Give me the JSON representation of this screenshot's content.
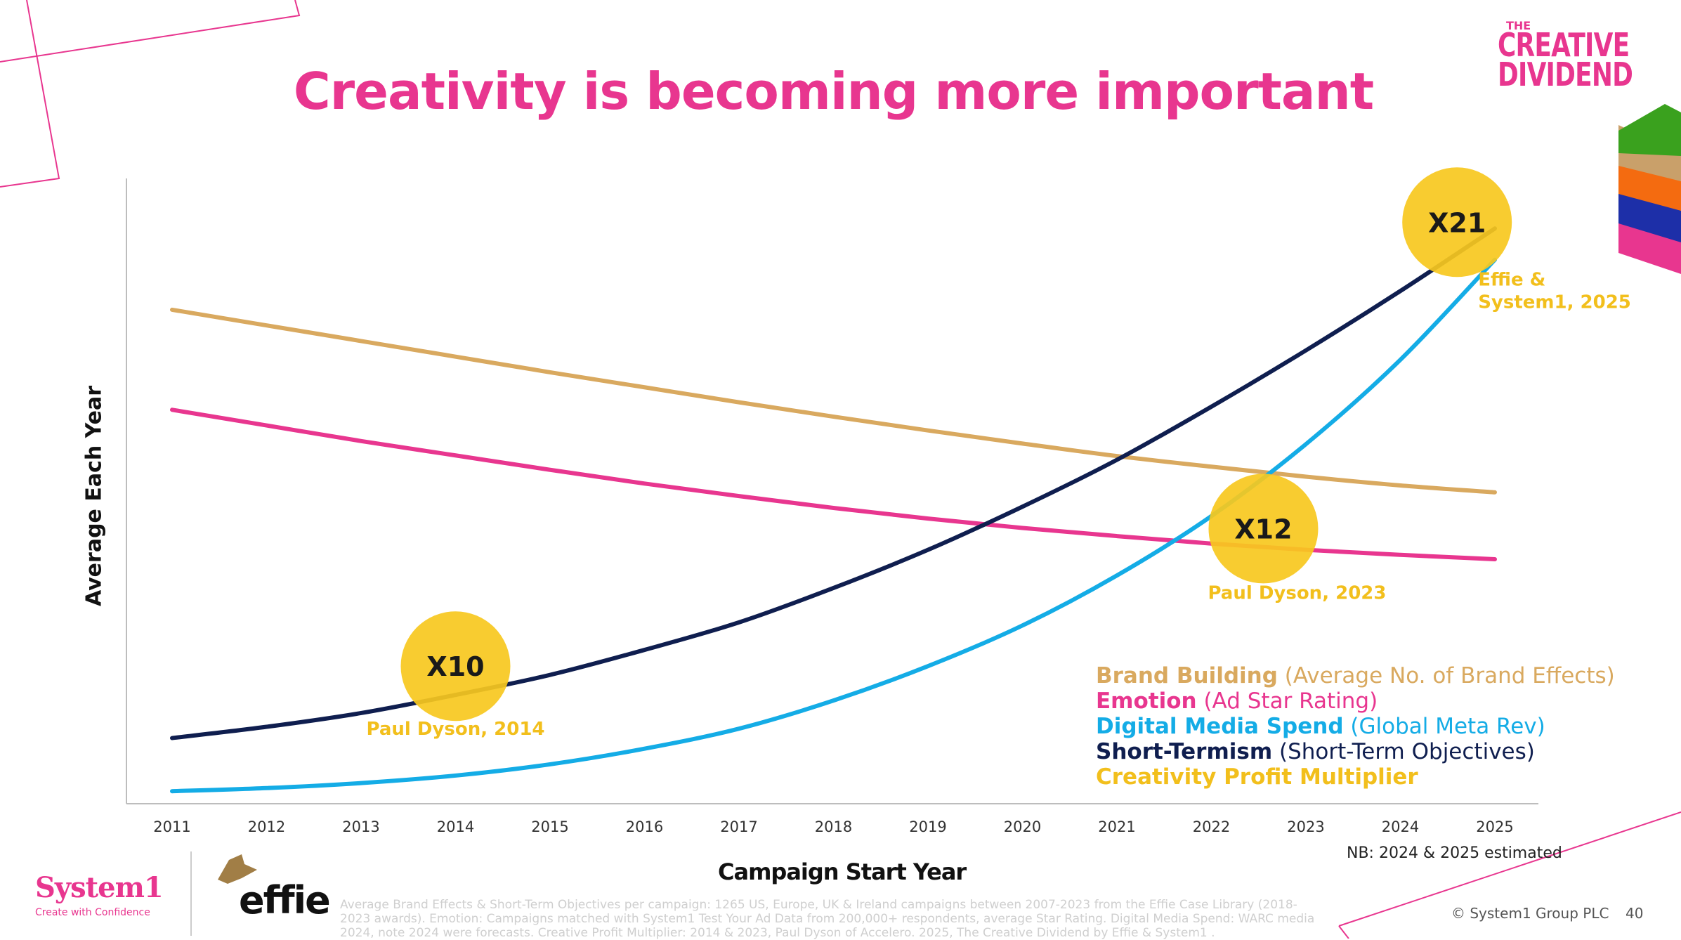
{
  "title": "Creativity is becoming more important",
  "brand_logo": {
    "the": "THE",
    "line1": "CREATIVE",
    "line2": "DIVIDEND"
  },
  "colors": {
    "brand": "#e8a6c7",
    "pink": "#e8368f",
    "gold": "#d9a95f",
    "cyan": "#14ace6",
    "navy": "#0f1e4f",
    "yellow": "#f7c81e",
    "yellow_text": "#f2bf1c"
  },
  "chart_data": {
    "type": "line",
    "xlabel": "Campaign Start Year",
    "ylabel": "Average Each Year",
    "x": [
      "2011",
      "2012",
      "2013",
      "2014",
      "2015",
      "2016",
      "2017",
      "2018",
      "2019",
      "2020",
      "2021",
      "2022",
      "2023",
      "2024",
      "2025"
    ],
    "ylim": [
      0,
      100
    ],
    "grid": false,
    "series": [
      {
        "name": "Brand Building",
        "detail": "(Average No. of Brand Effects)",
        "color": "#d9a95f",
        "values": [
          79,
          76.5,
          74,
          71.5,
          69,
          66.6,
          64.2,
          61.9,
          59.7,
          57.6,
          55.6,
          53.9,
          52.3,
          50.9,
          49.8
        ]
      },
      {
        "name": "Emotion",
        "detail": "(Ad Star Rating)",
        "color": "#e8368f",
        "values": [
          63,
          60.5,
          58,
          55.7,
          53.4,
          51.2,
          49.2,
          47.3,
          45.6,
          44.1,
          42.8,
          41.6,
          40.6,
          39.8,
          39.1
        ]
      },
      {
        "name": "Digital Media Spend",
        "detail": "(Global Meta Rev)",
        "color": "#14ace6",
        "values": [
          2,
          2.5,
          3.3,
          4.5,
          6.3,
          8.8,
          12,
          16.5,
          22,
          28.5,
          36.5,
          46,
          57.5,
          71,
          87
        ]
      },
      {
        "name": "Short-Termism",
        "detail": "(Short-Term Objectives)",
        "color": "#0f1e4f",
        "values": [
          10.5,
          12.3,
          14.5,
          17.4,
          20.6,
          24.6,
          29,
          34.5,
          40.6,
          47.5,
          55,
          63.5,
          72.5,
          82,
          92
        ]
      }
    ],
    "multipliers": [
      {
        "label": "X10",
        "source": "Paul Dyson, 2014",
        "x": 2014,
        "y": 22
      },
      {
        "label": "X12",
        "source": "Paul Dyson, 2023",
        "x": 2022.55,
        "y": 44
      },
      {
        "label": "X21",
        "source": "Effie & System1, 2025",
        "x": 2024.6,
        "y": 93
      }
    ],
    "legend": [
      {
        "key": "Brand Building",
        "detail": " (Average No. of Brand Effects)",
        "color": "#d9a95f"
      },
      {
        "key": "Emotion",
        "detail": " (Ad Star Rating)",
        "color": "#e8368f"
      },
      {
        "key": "Digital Media Spend",
        "detail": " (Global Meta Rev)",
        "color": "#14ace6"
      },
      {
        "key": "Short-Termism",
        "detail": " (Short-Term Objectives)",
        "color": "#0f1e4f"
      },
      {
        "key": "Creativity Profit Multiplier",
        "detail": "",
        "color": "#f2bf1c"
      }
    ],
    "legend_position": "bottom-right"
  },
  "nb_note": "NB: 2024 & 2025 estimated",
  "footer": {
    "system1": "System1",
    "system1_tagline": "Create with Confidence",
    "effie": "effie",
    "footnote": "Average Brand Effects & Short-Term Objectives per campaign: 1265 US, Europe, UK & Ireland campaigns between 2007-2023 from the Effie Case Library (2018-2023 awards). Emotion: Campaigns matched with System1 Test Your Ad Data from 200,000+ respondents, average Star Rating. Digital Media Spend: WARC media 2024, note 2024 were forecasts. Creative Profit Multiplier: 2014 & 2023, Paul Dyson of Accelero. 2025, The Creative Dividend by Effie & System1 .",
    "copyright": "© System1 Group PLC",
    "page_number": "40"
  },
  "blocks_icon": "stacked-layers-icon"
}
